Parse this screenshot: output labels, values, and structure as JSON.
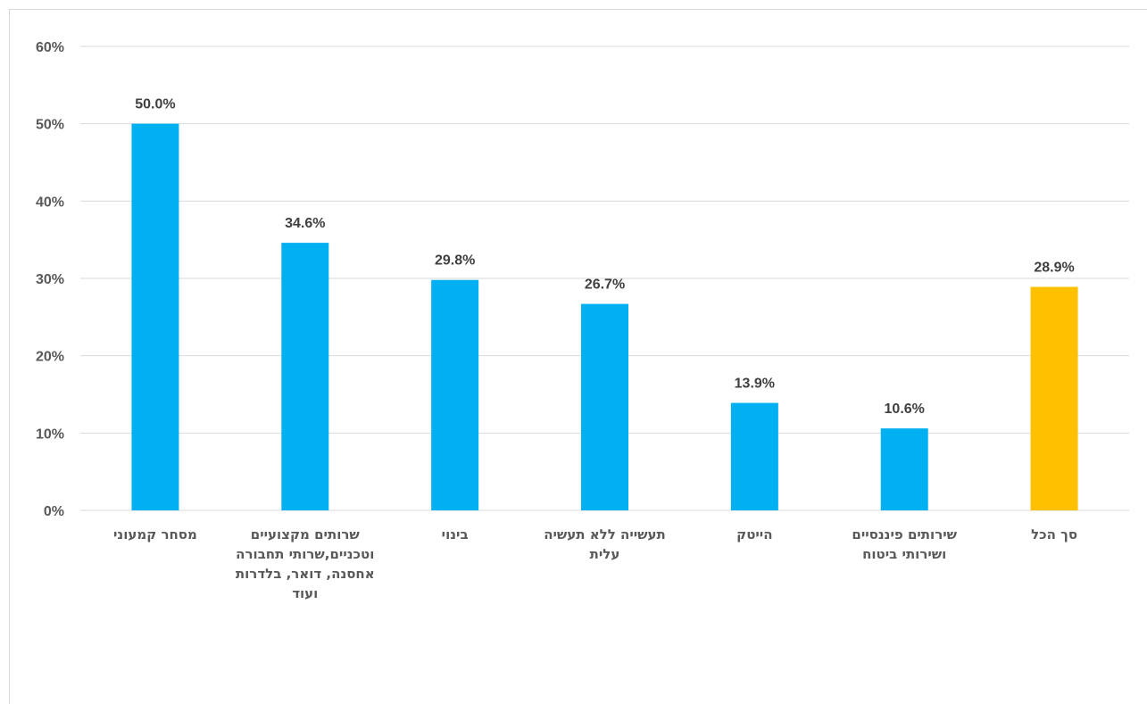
{
  "chart_data": {
    "type": "bar",
    "title": "",
    "xlabel": "",
    "ylabel": "",
    "ylim": [
      0,
      0.6
    ],
    "grid": true,
    "legend": "none",
    "y_ticks": [
      "0%",
      "10%",
      "20%",
      "30%",
      "40%",
      "50%",
      "60%"
    ],
    "categories": [
      "מסחר קמעוני",
      "שרותים מקצועיים וטכניים,שרותי תחבורה אחסנה, דואר, בלדרות ועוד",
      "בינוי",
      "תעשייה ללא תעשיה עלית",
      "הייטק",
      "שירותים פיננסיים ושירותי ביטוח",
      "סך הכל"
    ],
    "values": [
      0.5,
      0.346,
      0.298,
      0.267,
      0.139,
      0.106,
      0.289
    ],
    "data_labels": [
      "50.0%",
      "34.6%",
      "29.8%",
      "26.7%",
      "13.9%",
      "10.6%",
      "28.9%"
    ],
    "colors": [
      "#00b0f0",
      "#00b0f0",
      "#00b0f0",
      "#00b0f0",
      "#00b0f0",
      "#00b0f0",
      "#ffc000"
    ],
    "gridline_color": "#d9d9d9"
  }
}
